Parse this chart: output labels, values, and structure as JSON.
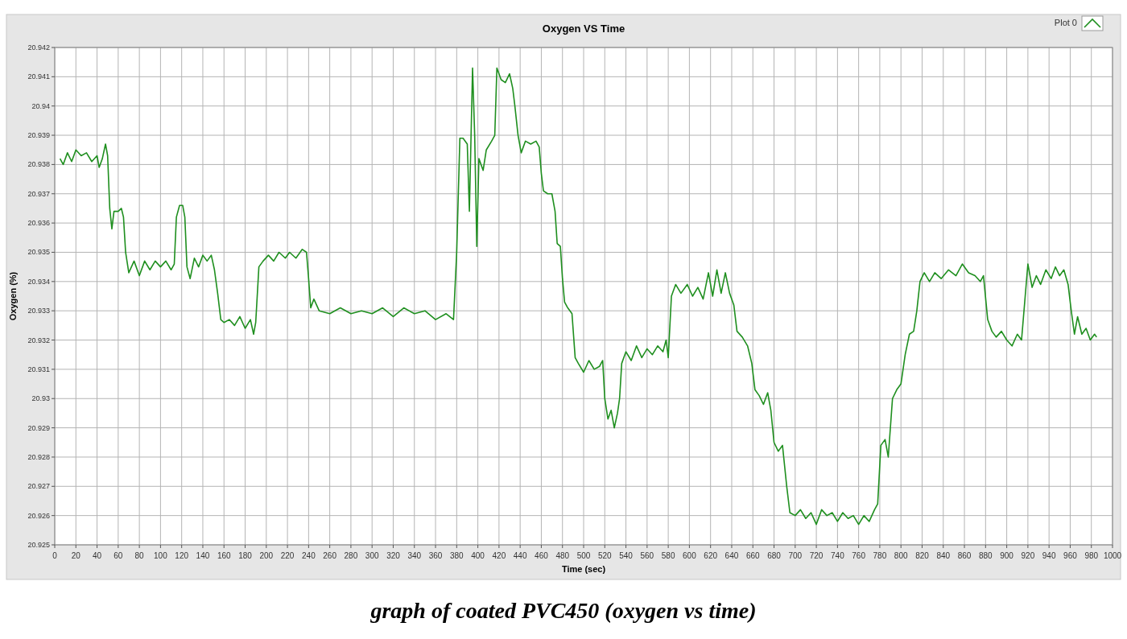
{
  "chart_data": {
    "type": "line",
    "title": "Oxygen VS Time",
    "xlabel": "Time (sec)",
    "ylabel": "Oxygen (%)",
    "annotations": [
      "graph of coated PVC450 (oxygen vs time)"
    ],
    "xlim": [
      0,
      1000
    ],
    "xticks": [
      0,
      20,
      40,
      60,
      80,
      100,
      120,
      140,
      160,
      180,
      200,
      220,
      240,
      260,
      280,
      300,
      320,
      340,
      360,
      380,
      400,
      420,
      440,
      460,
      480,
      500,
      520,
      540,
      560,
      580,
      600,
      620,
      640,
      660,
      680,
      700,
      720,
      740,
      760,
      780,
      800,
      820,
      840,
      860,
      880,
      900,
      920,
      940,
      960,
      980,
      1000
    ],
    "ylim": [
      20.925,
      20.942
    ],
    "yticks": [
      20.925,
      20.926,
      20.927,
      20.928,
      20.929,
      20.93,
      20.931,
      20.932,
      20.933,
      20.934,
      20.935,
      20.936,
      20.937,
      20.938,
      20.939,
      20.94,
      20.941,
      20.942
    ],
    "grid": true,
    "legend": "top right",
    "x": [
      5,
      8,
      12,
      16,
      20,
      25,
      30,
      35,
      40,
      42,
      45,
      48,
      50,
      52,
      54,
      56,
      60,
      63,
      65,
      67,
      70,
      75,
      80,
      85,
      90,
      95,
      100,
      105,
      110,
      113,
      115,
      118,
      121,
      123,
      125,
      128,
      132,
      136,
      140,
      144,
      148,
      151,
      154,
      157,
      160,
      165,
      170,
      175,
      180,
      185,
      188,
      190,
      193,
      197,
      202,
      207,
      212,
      218,
      222,
      228,
      234,
      238,
      240,
      242,
      245,
      250,
      260,
      270,
      280,
      290,
      300,
      310,
      320,
      330,
      340,
      350,
      360,
      370,
      377,
      380,
      383,
      386,
      390,
      392,
      395,
      397,
      399,
      401,
      405,
      408,
      413,
      416,
      418,
      422,
      426,
      430,
      433,
      435,
      438,
      441,
      445,
      450,
      455,
      458,
      460,
      462,
      466,
      470,
      473,
      475,
      478,
      480,
      482,
      485,
      489,
      492,
      495,
      500,
      505,
      510,
      515,
      518,
      520,
      523,
      526,
      529,
      532,
      534,
      536,
      540,
      545,
      550,
      555,
      560,
      565,
      570,
      575,
      578,
      580,
      583,
      587,
      592,
      598,
      603,
      608,
      613,
      618,
      622,
      626,
      630,
      634,
      638,
      642,
      645,
      650,
      655,
      659,
      662,
      666,
      670,
      674,
      677,
      680,
      684,
      688,
      692,
      695,
      700,
      705,
      710,
      715,
      720,
      725,
      730,
      735,
      740,
      745,
      750,
      755,
      760,
      765,
      770,
      775,
      778,
      781,
      785,
      788,
      792,
      796,
      800,
      804,
      808,
      812,
      815,
      818,
      822,
      827,
      832,
      838,
      845,
      852,
      858,
      864,
      870,
      875,
      878,
      882,
      886,
      890,
      895,
      900,
      905,
      910,
      914,
      917,
      920,
      924,
      928,
      932,
      937,
      942,
      946,
      950,
      954,
      958,
      961,
      964,
      967,
      971,
      975,
      979,
      983,
      985
    ],
    "series": [
      {
        "name": "Plot 0",
        "color": "#1f8f1f",
        "values": [
          20.9382,
          20.938,
          20.9384,
          20.9381,
          20.9385,
          20.9383,
          20.9384,
          20.9381,
          20.9383,
          20.9379,
          20.9382,
          20.9387,
          20.9383,
          20.9365,
          20.9358,
          20.9364,
          20.9364,
          20.9365,
          20.9362,
          20.935,
          20.9343,
          20.9347,
          20.9342,
          20.9347,
          20.9344,
          20.9347,
          20.9345,
          20.9347,
          20.9344,
          20.9346,
          20.9362,
          20.9366,
          20.9366,
          20.9362,
          20.9345,
          20.9341,
          20.9348,
          20.9345,
          20.9349,
          20.9347,
          20.9349,
          20.9344,
          20.9336,
          20.9327,
          20.9326,
          20.9327,
          20.9325,
          20.9328,
          20.9324,
          20.9327,
          20.9322,
          20.9326,
          20.9345,
          20.9347,
          20.9349,
          20.9347,
          20.935,
          20.9348,
          20.935,
          20.9348,
          20.9351,
          20.935,
          20.9341,
          20.9331,
          20.9334,
          20.933,
          20.9329,
          20.9331,
          20.9329,
          20.933,
          20.9329,
          20.9331,
          20.9328,
          20.9331,
          20.9329,
          20.933,
          20.9327,
          20.9329,
          20.9327,
          20.935,
          20.9389,
          20.9389,
          20.9387,
          20.9364,
          20.9413,
          20.939,
          20.9352,
          20.9382,
          20.9378,
          20.9385,
          20.9388,
          20.939,
          20.9413,
          20.9409,
          20.9408,
          20.9411,
          20.9406,
          20.94,
          20.939,
          20.9384,
          20.9388,
          20.9387,
          20.9388,
          20.9386,
          20.9377,
          20.9371,
          20.937,
          20.937,
          20.9364,
          20.9353,
          20.9352,
          20.9341,
          20.9333,
          20.9331,
          20.9329,
          20.9314,
          20.9312,
          20.9309,
          20.9313,
          20.931,
          20.9311,
          20.9313,
          20.93,
          20.9293,
          20.9296,
          20.929,
          20.9295,
          20.93,
          20.9312,
          20.9316,
          20.9313,
          20.9318,
          20.9314,
          20.9317,
          20.9315,
          20.9318,
          20.9316,
          20.932,
          20.9314,
          20.9335,
          20.9339,
          20.9336,
          20.9339,
          20.9335,
          20.9338,
          20.9334,
          20.9343,
          20.9335,
          20.9344,
          20.9336,
          20.9343,
          20.9336,
          20.9332,
          20.9323,
          20.9321,
          20.9318,
          20.9312,
          20.9303,
          20.9301,
          20.9298,
          20.9302,
          20.9296,
          20.9285,
          20.9282,
          20.9284,
          20.927,
          20.9261,
          20.926,
          20.9262,
          20.9259,
          20.9261,
          20.9257,
          20.9262,
          20.926,
          20.9261,
          20.9258,
          20.9261,
          20.9259,
          20.926,
          20.9257,
          20.926,
          20.9258,
          20.9262,
          20.9264,
          20.9284,
          20.9286,
          20.928,
          20.93,
          20.9303,
          20.9305,
          20.9315,
          20.9322,
          20.9323,
          20.933,
          20.934,
          20.9343,
          20.934,
          20.9343,
          20.9341,
          20.9344,
          20.9342,
          20.9346,
          20.9343,
          20.9342,
          20.934,
          20.9342,
          20.9327,
          20.9323,
          20.9321,
          20.9323,
          20.932,
          20.9318,
          20.9322,
          20.932,
          20.9333,
          20.9346,
          20.9338,
          20.9342,
          20.9339,
          20.9344,
          20.9341,
          20.9345,
          20.9342,
          20.9344,
          20.9339,
          20.933,
          20.9322,
          20.9328,
          20.9322,
          20.9324,
          20.932,
          20.9322,
          20.9321
        ]
      }
    ]
  }
}
